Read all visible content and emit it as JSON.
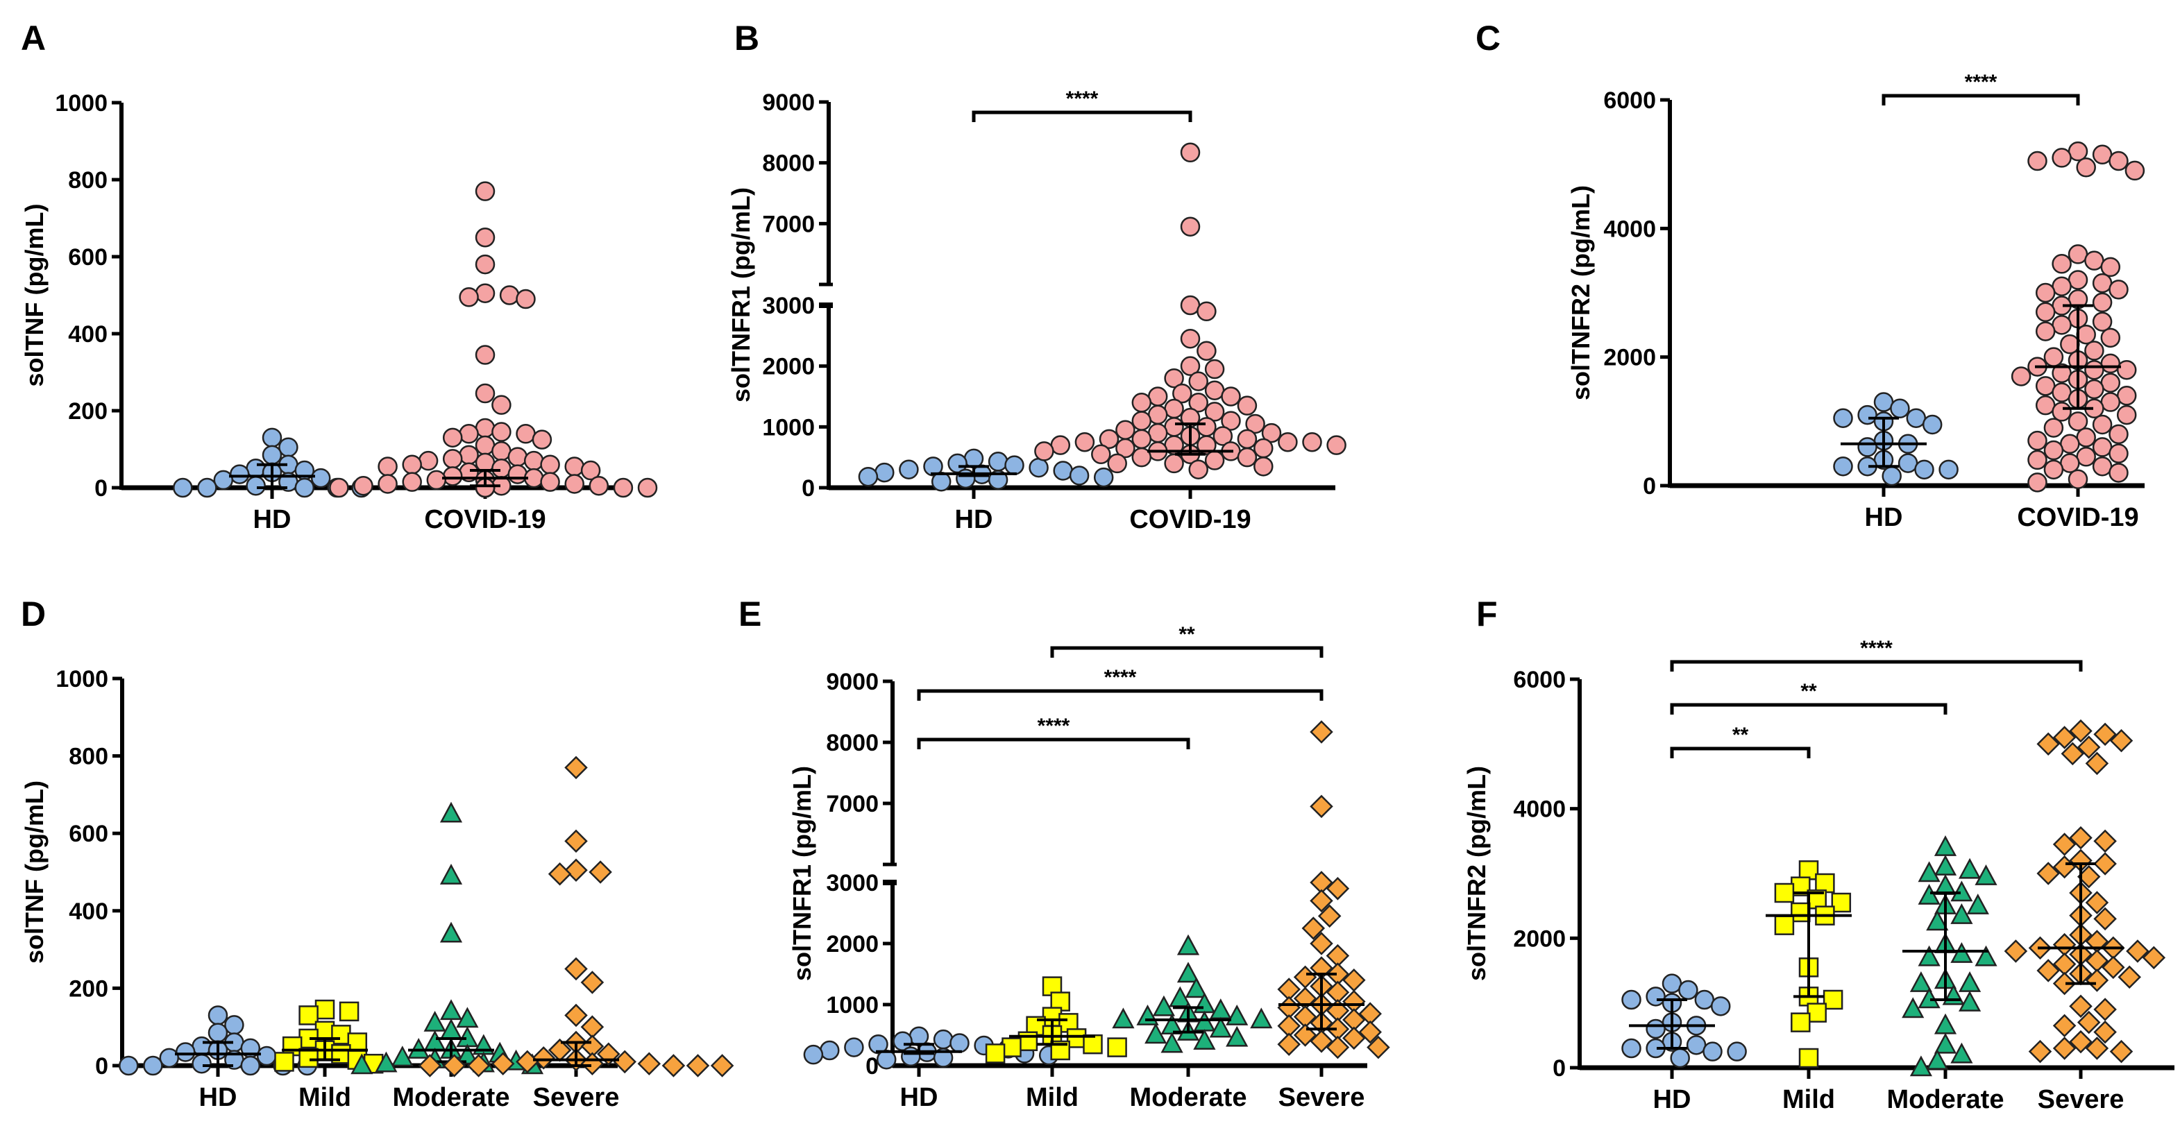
{
  "colors": {
    "HD": "#8db4e2",
    "COVID-19": "#f4a3a3",
    "Mild": "#ffff00",
    "Moderate": "#1db07a",
    "Severe": "#f7a23e",
    "stroke": "#222222"
  },
  "chart_data": [
    {
      "panel": "A",
      "type": "scatter",
      "ylabel": "solTNF (pg/mL)",
      "ylim": [
        0,
        1000
      ],
      "yticks": [
        0,
        200,
        400,
        600,
        800,
        1000
      ],
      "categories": [
        "HD",
        "COVID-19"
      ],
      "groups": [
        {
          "name": "HD",
          "marker": "circle",
          "values": [
            130,
            105,
            85,
            60,
            50,
            45,
            40,
            35,
            25,
            20,
            15,
            5,
            0,
            0,
            0,
            0,
            0
          ],
          "median": 30,
          "q1": 0,
          "q3": 60
        },
        {
          "name": "COVID-19",
          "marker": "circle",
          "values": [
            770,
            650,
            580,
            505,
            495,
            490,
            500,
            345,
            245,
            215,
            155,
            145,
            140,
            140,
            130,
            125,
            110,
            95,
            85,
            80,
            75,
            70,
            70,
            65,
            60,
            60,
            55,
            55,
            50,
            45,
            40,
            35,
            30,
            25,
            20,
            20,
            15,
            15,
            10,
            10,
            5,
            5,
            5,
            0,
            0,
            0,
            0,
            0,
            0,
            0,
            0,
            0,
            0,
            0,
            0
          ],
          "median": 25,
          "q1": 5,
          "q3": 45
        }
      ],
      "comparisons": []
    },
    {
      "panel": "B",
      "type": "scatter",
      "ylabel": "solTNFR1 (pg/mL)",
      "ylim": [
        0,
        9000
      ],
      "axis_break": [
        3000,
        6000
      ],
      "yticks": [
        0,
        1000,
        2000,
        3000,
        7000,
        8000,
        9000
      ],
      "categories": [
        "HD",
        "COVID-19"
      ],
      "groups": [
        {
          "name": "HD",
          "marker": "circle",
          "values": [
            480,
            430,
            400,
            370,
            350,
            330,
            300,
            280,
            250,
            220,
            200,
            180,
            170,
            150,
            130,
            100
          ],
          "median": 230,
          "q1": 200,
          "q3": 350
        },
        {
          "name": "COVID-19",
          "marker": "circle",
          "values": [
            8170,
            6950,
            3000,
            2900,
            2450,
            2250,
            2000,
            1950,
            1800,
            1750,
            1600,
            1550,
            1500,
            1500,
            1400,
            1400,
            1350,
            1300,
            1250,
            1200,
            1150,
            1100,
            1100,
            1050,
            1000,
            1000,
            950,
            900,
            900,
            850,
            850,
            800,
            800,
            800,
            750,
            750,
            750,
            700,
            700,
            700,
            700,
            650,
            650,
            600,
            600,
            600,
            550,
            550,
            500,
            500,
            450,
            400,
            400,
            350,
            300
          ],
          "median": 600,
          "q1": 550,
          "q3": 1050
        }
      ],
      "comparisons": [
        {
          "from": "HD",
          "to": "COVID-19",
          "label": "****"
        }
      ]
    },
    {
      "panel": "C",
      "type": "scatter",
      "ylabel": "solTNFR2 (pg/mL)",
      "ylim": [
        0,
        6000
      ],
      "yticks": [
        0,
        2000,
        4000,
        6000
      ],
      "categories": [
        "HD",
        "COVID-19"
      ],
      "groups": [
        {
          "name": "HD",
          "marker": "circle",
          "values": [
            1300,
            1200,
            1100,
            1050,
            1050,
            1000,
            950,
            700,
            650,
            600,
            400,
            350,
            300,
            300,
            250,
            250,
            150
          ],
          "median": 650,
          "q1": 300,
          "q3": 1050
        },
        {
          "name": "COVID-19",
          "marker": "circle",
          "values": [
            5200,
            5150,
            5100,
            5050,
            5050,
            4950,
            4900,
            3600,
            3500,
            3450,
            3400,
            3200,
            3150,
            3100,
            3050,
            3000,
            2900,
            2850,
            2800,
            2700,
            2600,
            2550,
            2500,
            2400,
            2350,
            2300,
            2200,
            2100,
            2000,
            1950,
            1900,
            1850,
            1800,
            1800,
            1750,
            1700,
            1650,
            1600,
            1550,
            1500,
            1450,
            1400,
            1350,
            1300,
            1250,
            1200,
            1150,
            1100,
            1000,
            950,
            900,
            800,
            750,
            700,
            650,
            600,
            550,
            500,
            450,
            400,
            350,
            300,
            250,
            200,
            100,
            50
          ],
          "median": 1850,
          "q1": 1200,
          "q3": 2800
        }
      ],
      "comparisons": [
        {
          "from": "HD",
          "to": "COVID-19",
          "label": "****"
        }
      ]
    },
    {
      "panel": "D",
      "type": "scatter",
      "ylabel": "solTNF (pg/mL)",
      "ylim": [
        0,
        1000
      ],
      "yticks": [
        0,
        200,
        400,
        600,
        800,
        1000
      ],
      "categories": [
        "HD",
        "Mild",
        "Moderate",
        "Severe"
      ],
      "groups": [
        {
          "name": "HD",
          "marker": "circle",
          "values": [
            130,
            105,
            85,
            60,
            50,
            45,
            40,
            35,
            25,
            20,
            15,
            5,
            0,
            0,
            0,
            0,
            0
          ],
          "median": 30,
          "q1": 0,
          "q3": 60
        },
        {
          "name": "Mild",
          "marker": "square",
          "values": [
            145,
            140,
            130,
            90,
            80,
            70,
            60,
            50,
            40,
            30,
            20,
            15,
            10,
            5
          ],
          "median": 40,
          "q1": 15,
          "q3": 70
        },
        {
          "name": "Moderate",
          "marker": "triangle",
          "values": [
            650,
            490,
            340,
            140,
            120,
            110,
            90,
            70,
            60,
            50,
            40,
            40,
            30,
            25,
            20,
            15,
            10,
            5,
            5,
            0,
            0
          ],
          "median": 40,
          "q1": 10,
          "q3": 70
        },
        {
          "name": "Severe",
          "marker": "diamond",
          "values": [
            770,
            580,
            505,
            500,
            495,
            250,
            215,
            130,
            100,
            60,
            50,
            40,
            30,
            20,
            15,
            10,
            10,
            5,
            5,
            5,
            0,
            0,
            0,
            0,
            0,
            0
          ],
          "median": 15,
          "q1": 0,
          "q3": 60
        }
      ],
      "comparisons": []
    },
    {
      "panel": "E",
      "type": "scatter",
      "ylabel": "solTNFR1 (pg/mL)",
      "ylim": [
        0,
        9000
      ],
      "axis_break": [
        3000,
        6000
      ],
      "yticks": [
        0,
        1000,
        2000,
        3000,
        7000,
        8000,
        9000
      ],
      "categories": [
        "HD",
        "Mild",
        "Moderate",
        "Severe"
      ],
      "groups": [
        {
          "name": "HD",
          "marker": "circle",
          "values": [
            480,
            430,
            400,
            370,
            350,
            330,
            300,
            280,
            250,
            220,
            200,
            180,
            170,
            150,
            130,
            100
          ],
          "median": 230,
          "q1": 200,
          "q3": 350
        },
        {
          "name": "Mild",
          "marker": "square",
          "values": [
            1300,
            1050,
            800,
            700,
            650,
            500,
            450,
            400,
            350,
            300,
            300,
            250,
            200
          ],
          "median": 480,
          "q1": 350,
          "q3": 750
        },
        {
          "name": "Moderate",
          "marker": "triangle",
          "values": [
            1950,
            1500,
            1250,
            1100,
            1000,
            950,
            900,
            850,
            800,
            800,
            750,
            750,
            700,
            650,
            600,
            550,
            500,
            450,
            400,
            350
          ],
          "median": 750,
          "q1": 550,
          "q3": 950
        },
        {
          "name": "Severe",
          "marker": "diamond",
          "values": [
            8170,
            6950,
            3000,
            2900,
            2700,
            2450,
            2250,
            2000,
            1800,
            1600,
            1500,
            1450,
            1400,
            1300,
            1250,
            1200,
            1100,
            1050,
            1000,
            950,
            900,
            850,
            800,
            750,
            700,
            650,
            600,
            550,
            500,
            450,
            400,
            350,
            300,
            300
          ],
          "median": 1000,
          "q1": 600,
          "q3": 1500
        }
      ],
      "comparisons": [
        {
          "from": "Mild",
          "to": "Severe",
          "label": "**"
        },
        {
          "from": "HD",
          "to": "Severe",
          "label": "****"
        },
        {
          "from": "HD",
          "to": "Moderate",
          "label": "****"
        }
      ]
    },
    {
      "panel": "F",
      "type": "scatter",
      "ylabel": "solTNFR2 (pg/mL)",
      "ylim": [
        0,
        6000
      ],
      "yticks": [
        0,
        2000,
        4000,
        6000
      ],
      "categories": [
        "HD",
        "Mild",
        "Moderate",
        "Severe"
      ],
      "groups": [
        {
          "name": "HD",
          "marker": "circle",
          "values": [
            1300,
            1200,
            1100,
            1050,
            1050,
            1000,
            950,
            700,
            650,
            600,
            400,
            350,
            300,
            300,
            250,
            250,
            150
          ],
          "median": 650,
          "q1": 300,
          "q3": 1050
        },
        {
          "name": "Mild",
          "marker": "square",
          "values": [
            3050,
            2850,
            2800,
            2700,
            2600,
            2550,
            2400,
            2350,
            2200,
            1550,
            1100,
            1050,
            850,
            700,
            150
          ],
          "median": 2350,
          "q1": 1100,
          "q3": 2700
        },
        {
          "name": "Moderate",
          "marker": "triangle",
          "values": [
            3400,
            3100,
            3050,
            3000,
            2950,
            2800,
            2700,
            2650,
            2500,
            2500,
            2350,
            2250,
            1900,
            1750,
            1700,
            1700,
            1350,
            1300,
            1300,
            1100,
            1050,
            1000,
            900,
            650,
            350,
            200,
            100,
            0
          ],
          "median": 1800,
          "q1": 1050,
          "q3": 2700
        },
        {
          "name": "Severe",
          "marker": "diamond",
          "values": [
            5200,
            5150,
            5100,
            5050,
            5000,
            4950,
            4850,
            4700,
            3550,
            3500,
            3450,
            3200,
            3150,
            3100,
            3000,
            2950,
            2700,
            2550,
            2350,
            2300,
            2050,
            1950,
            1900,
            1850,
            1850,
            1800,
            1800,
            1750,
            1700,
            1650,
            1600,
            1550,
            1500,
            1450,
            1400,
            1350,
            1300,
            950,
            900,
            700,
            650,
            550,
            400,
            300,
            250,
            250,
            300
          ],
          "median": 1850,
          "q1": 1300,
          "q3": 3150
        }
      ],
      "comparisons": [
        {
          "from": "HD",
          "to": "Severe",
          "label": "****"
        },
        {
          "from": "HD",
          "to": "Moderate",
          "label": "**"
        },
        {
          "from": "HD",
          "to": "Mild",
          "label": "**"
        }
      ]
    }
  ]
}
